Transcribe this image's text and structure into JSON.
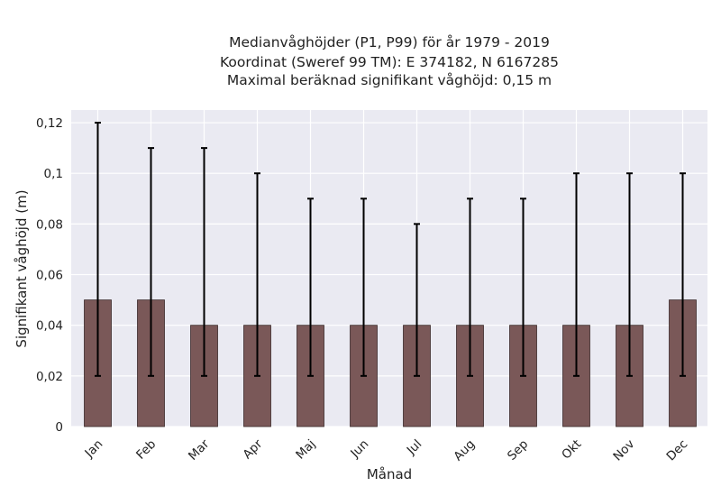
{
  "chart_data": {
    "type": "bar",
    "title_lines": [
      "Medianvåghöjder (P1, P99) för år 1979 - 2019",
      "Koordinat (Sweref 99 TM): E 374182, N 6167285",
      "Maximal beräknad signifikant våghöjd: 0,15 m"
    ],
    "xlabel": "Månad",
    "ylabel": "Signifikant våghöjd (m)",
    "categories": [
      "Jan",
      "Feb",
      "Mar",
      "Apr",
      "Maj",
      "Jun",
      "Jul",
      "Aug",
      "Sep",
      "Okt",
      "Nov",
      "Dec"
    ],
    "series": [
      {
        "values": [
          0.05,
          0.05,
          0.04,
          0.04,
          0.04,
          0.04,
          0.04,
          0.04,
          0.04,
          0.04,
          0.04,
          0.05
        ],
        "error_low": [
          0.02,
          0.02,
          0.02,
          0.02,
          0.02,
          0.02,
          0.02,
          0.02,
          0.02,
          0.02,
          0.02,
          0.02
        ],
        "error_high": [
          0.12,
          0.11,
          0.11,
          0.1,
          0.09,
          0.09,
          0.08,
          0.09,
          0.09,
          0.1,
          0.1,
          0.1
        ]
      }
    ],
    "ylim": [
      0,
      0.125
    ],
    "yticks": [
      0,
      0.02,
      0.04,
      0.06,
      0.08,
      0.1,
      0.12
    ],
    "ytick_labels": [
      "0",
      "0,02",
      "0,04",
      "0,06",
      "0,08",
      "0,1",
      "0,12"
    ],
    "grid": true,
    "colors": {
      "bar": "#7a5858",
      "bar_edge": "#3a2a2a",
      "error_bar": "#000000",
      "plot_background": "#eaeaf2",
      "grid": "#ffffff"
    }
  }
}
